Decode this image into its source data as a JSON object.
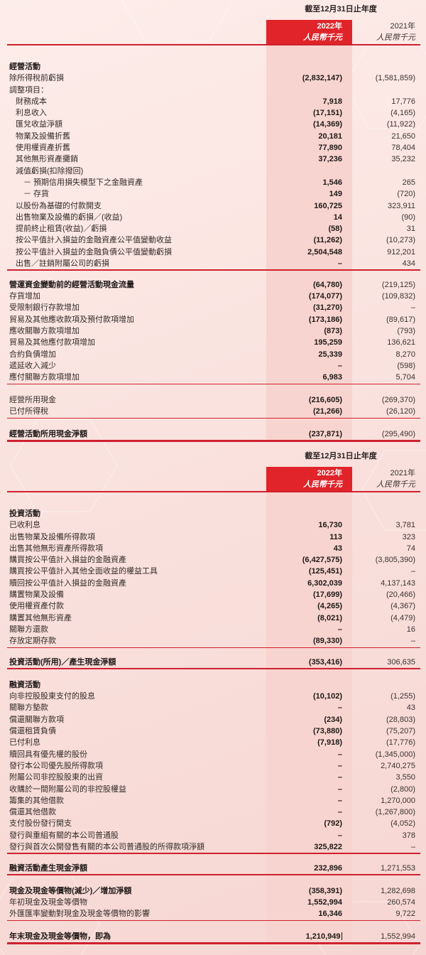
{
  "colors": {
    "accent_red": "#e0242a",
    "line_red": "#cf2130",
    "band_pink": "#f7d4cf",
    "page_pink": "#fae2de"
  },
  "period_header": {
    "caption": "截至12月31日止年度",
    "y2022": "2022年",
    "y2021": "2021年",
    "unit": "人民幣千元"
  },
  "tables": [
    {
      "sections": [
        {
          "gap": 22,
          "line": "thin",
          "rows": [
            {
              "l": "經營活動",
              "b": 1
            },
            {
              "l": "除所得稅前虧損",
              "v1": "(2,832,147)",
              "v2": "(1,581,859)"
            },
            {
              "l": "調整項目："
            },
            {
              "l": "財務成本",
              "i": 1,
              "v1": "7,918",
              "v2": "17,776"
            },
            {
              "l": "利息收入",
              "i": 1,
              "v1": "(17,151)",
              "v2": "(4,165)"
            },
            {
              "l": "匯兌收益淨額",
              "i": 1,
              "v1": "(14,369)",
              "v2": "(11,922)"
            },
            {
              "l": "物業及設備折舊",
              "i": 1,
              "v1": "20,181",
              "v2": "21,650"
            },
            {
              "l": "使用權資產折舊",
              "i": 1,
              "v1": "77,890",
              "v2": "78,404"
            },
            {
              "l": "其他無形資產攤銷",
              "i": 1,
              "v1": "37,236",
              "v2": "35,232"
            },
            {
              "l": "減值虧損(扣除撥回)",
              "i": 1
            },
            {
              "l": "－ 預期信用損失模型下之金融資產",
              "i": 2,
              "v1": "1,546",
              "v2": "265"
            },
            {
              "l": "－ 存貨",
              "i": 2,
              "v1": "149",
              "v2": "(720)"
            },
            {
              "l": "以股份為基礎的付款開支",
              "i": 1,
              "v1": "160,725",
              "v2": "323,911"
            },
            {
              "l": "出售物業及設備的虧損／(收益)",
              "i": 1,
              "v1": "14",
              "v2": "(90)"
            },
            {
              "l": "提前終止租賃(收益)／虧損",
              "i": 1,
              "v1": "(58)",
              "v2": "31"
            },
            {
              "l": "按公平值計入損益的金融資產公平值變動收益",
              "i": 1,
              "v1": "(11,262)",
              "v2": "(10,273)"
            },
            {
              "l": "按公平值計入損益的金融負債公平值變動虧損",
              "i": 1,
              "v1": "2,504,548",
              "v2": "912,201"
            },
            {
              "l": "出售／註銷附屬公司的虧損",
              "i": 1,
              "v1": "–",
              "v2": "434"
            }
          ]
        },
        {
          "gap": 12,
          "line": "thin",
          "rows": [
            {
              "l": "營運資金變動前的經營活動現金流量",
              "b": 1,
              "v1": "(64,780)",
              "v2": "(219,125)"
            },
            {
              "l": "存貨增加",
              "v1": "(174,077)",
              "v2": "(109,832)"
            },
            {
              "l": "受限制銀行存款增加",
              "v1": "(31,270)",
              "v2": "–"
            },
            {
              "l": "貿易及其他應收款項及預付款項增加",
              "v1": "(173,186)",
              "v2": "(89,617)"
            },
            {
              "l": "應收關聯方款項增加",
              "v1": "(873)",
              "v2": "(793)"
            },
            {
              "l": "貿易及其他應付款項增加",
              "v1": "195,259",
              "v2": "136,621"
            },
            {
              "l": "合約負債增加",
              "v1": "25,339",
              "v2": "8,270"
            },
            {
              "l": "遞延收入減少",
              "v1": "–",
              "v2": "(598)"
            },
            {
              "l": "應付關聯方款項增加",
              "v1": "6,983",
              "v2": "5,704"
            }
          ]
        },
        {
          "gap": 14,
          "line": "thin",
          "rows": [
            {
              "l": "經營所用現金",
              "v1": "(216,605)",
              "v2": "(269,370)"
            },
            {
              "l": "已付所得稅",
              "v1": "(21,266)",
              "v2": "(26,120)"
            }
          ]
        },
        {
          "gap": 14,
          "line": "thick",
          "rows": [
            {
              "l": "經營活動所用現金淨額",
              "b": 1,
              "v1": "(237,871)",
              "v2": "(295,490)"
            }
          ]
        }
      ]
    },
    {
      "sections": [
        {
          "gap": 22,
          "line": "thin",
          "rows": [
            {
              "l": "投資活動",
              "b": 1
            },
            {
              "l": "已收利息",
              "v1": "16,730",
              "v2": "3,781"
            },
            {
              "l": "出售物業及設備所得款項",
              "v1": "113",
              "v2": "323"
            },
            {
              "l": "出售其他無形資產所得款項",
              "v1": "43",
              "v2": "74"
            },
            {
              "l": "購買按公平值計入損益的金融資產",
              "v1": "(6,427,575)",
              "v2": "(3,805,390)"
            },
            {
              "l": "購買按公平值計入其他全面收益的權益工具",
              "v1": "(125,451)",
              "v2": "–"
            },
            {
              "l": "贖回按公平值計入損益的金融資產",
              "v1": "6,302,039",
              "v2": "4,137,143"
            },
            {
              "l": "購置物業及設備",
              "v1": "(17,699)",
              "v2": "(20,466)"
            },
            {
              "l": "使用權資產付款",
              "v1": "(4,265)",
              "v2": "(4,367)"
            },
            {
              "l": "購置其他無形資產",
              "v1": "(8,021)",
              "v2": "(4,479)"
            },
            {
              "l": "關聯方還款",
              "v1": "–",
              "v2": "16"
            },
            {
              "l": "存放定期存款",
              "v1": "(89,330)",
              "v2": "–"
            }
          ]
        },
        {
          "gap": 12,
          "line": "thin",
          "rows": [
            {
              "l": "投資活動(所用)／產生現金淨額",
              "b": 1,
              "v1": "(353,416)",
              "v2": "306,635"
            }
          ]
        },
        {
          "gap": 14,
          "line": "thin",
          "rows": [
            {
              "l": "融資活動",
              "b": 1
            },
            {
              "l": "向非控股股東支付的股息",
              "v1": "(10,102)",
              "v2": "(1,255)"
            },
            {
              "l": "關聯方墊款",
              "v1": "–",
              "v2": "43"
            },
            {
              "l": "償還關聯方款項",
              "v1": "(234)",
              "v2": "(28,803)"
            },
            {
              "l": "償還租賃負債",
              "v1": "(73,880)",
              "v2": "(75,207)"
            },
            {
              "l": "已付利息",
              "v1": "(7,918)",
              "v2": "(17,776)"
            },
            {
              "l": "贖回具有優先權的股份",
              "v1": "–",
              "v2": "(1,345,000)"
            },
            {
              "l": "發行本公司優先股所得款項",
              "v1": "–",
              "v2": "2,740,275"
            },
            {
              "l": "附屬公司非控股股東的出資",
              "v1": "–",
              "v2": "3,550"
            },
            {
              "l": "收購於一間附屬公司的非控股權益",
              "v1": "–",
              "v2": "(2,800)"
            },
            {
              "l": "籌集的其他借款",
              "v1": "–",
              "v2": "1,270,000"
            },
            {
              "l": "償還其他借款",
              "v1": "–",
              "v2": "(1,267,800)"
            },
            {
              "l": "支付股份發行開支",
              "v1": "(792)",
              "v2": "(4,052)"
            },
            {
              "l": "發行與重組有關的本公司普通股",
              "v1": "–",
              "v2": "378"
            },
            {
              "l": "發行與首次公開發售有關的本公司普通股的所得款項淨額",
              "v1": "325,822",
              "v2": "–"
            }
          ]
        },
        {
          "gap": 12,
          "line": "thin",
          "rows": [
            {
              "l": "融資活動產生現金淨額",
              "b": 1,
              "v1": "232,896",
              "v2": "1,271,553"
            }
          ]
        },
        {
          "gap": 14,
          "line": "thin",
          "rows": [
            {
              "l": "現金及現金等價物(減少)／增加淨額",
              "b": 1,
              "v1": "(358,391)",
              "v2": "1,282,698"
            },
            {
              "l": "年初現金及現金等價物",
              "v1": "1,552,994",
              "v2": "260,574"
            },
            {
              "l": "外匯匯率變動對現金及現金等價物的影響",
              "v1": "16,346",
              "v2": "9,722"
            }
          ]
        },
        {
          "gap": 14,
          "line": "thick",
          "rows": [
            {
              "l": "年末現金及現金等價物，即為",
              "b": 1,
              "v1": "1,210,949",
              "caret": true,
              "v2": "1,552,994"
            }
          ]
        }
      ]
    }
  ]
}
